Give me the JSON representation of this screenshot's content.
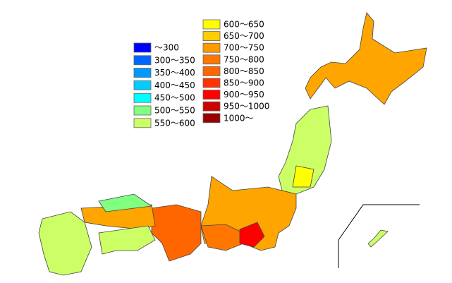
{
  "legend": {
    "left": [
      {
        "label": "～300",
        "color": "#0000ff"
      },
      {
        "label": "300～350",
        "color": "#0066ff"
      },
      {
        "label": "350～400",
        "color": "#0099ff"
      },
      {
        "label": "400～450",
        "color": "#00ccff"
      },
      {
        "label": "450～500",
        "color": "#00ffff"
      },
      {
        "label": "500～550",
        "color": "#80ff80"
      },
      {
        "label": "550～600",
        "color": "#ccff66"
      }
    ],
    "right": [
      {
        "label": "600～650",
        "color": "#ffff00"
      },
      {
        "label": "650～700",
        "color": "#ffcc00"
      },
      {
        "label": "700～750",
        "color": "#ff9900"
      },
      {
        "label": "750～800",
        "color": "#ff7700"
      },
      {
        "label": "800～850",
        "color": "#ff6600"
      },
      {
        "label": "850～900",
        "color": "#ff3300"
      },
      {
        "label": "900～950",
        "color": "#ff0000"
      },
      {
        "label": "950～1000",
        "color": "#cc0000"
      },
      {
        "label": "1000～",
        "color": "#990000"
      }
    ]
  }
}
